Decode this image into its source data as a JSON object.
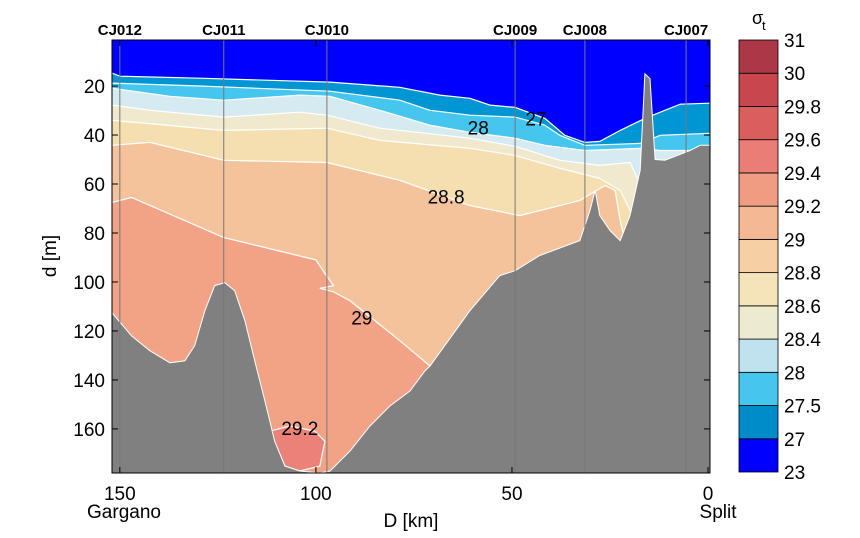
{
  "chart_data": {
    "type": "heatmap",
    "subtype": "filled-contour-section",
    "xlabel": "D [km]",
    "ylabel": "d [m]",
    "xlim": [
      152,
      -0.5
    ],
    "ylim": [
      1.2,
      178
    ],
    "xticks": [
      150,
      100,
      50,
      0
    ],
    "yticks": [
      20,
      40,
      60,
      80,
      100,
      120,
      140,
      160
    ],
    "x_end_labels": {
      "left": "Gargano",
      "right": "Split"
    },
    "stations": [
      {
        "name": "CJ012",
        "km": 150
      },
      {
        "name": "CJ011",
        "km": 123.5
      },
      {
        "name": "CJ010",
        "km": 97.2
      },
      {
        "name": "CJ009",
        "km": 49.2
      },
      {
        "name": "CJ008",
        "km": 31.4
      },
      {
        "name": "CJ007",
        "km": 5.6
      }
    ],
    "colorbar": {
      "title": "σ",
      "title_sub": "t",
      "levels": [
        "23",
        "27",
        "27.5",
        "28",
        "28.4",
        "28.6",
        "28.8",
        "29",
        "29.2",
        "29.4",
        "29.6",
        "29.8",
        "30",
        "31"
      ],
      "colors": [
        "#0000ff",
        "#008cc8",
        "#44c6ee",
        "#bfe2ee",
        "#ecebd0",
        "#f5e3b9",
        "#f6d0a4",
        "#f4b894",
        "#f09c82",
        "#ea7d75",
        "#da5e5e",
        "#c8474f",
        "#ac3747"
      ]
    },
    "background_color": "#0000ff",
    "layers": [
      {
        "level": "27",
        "color": "#0096d4",
        "boundary": [
          [
            152,
            14.7
          ],
          [
            150,
            16
          ],
          [
            129.6,
            16.8
          ],
          [
            96.4,
            18.4
          ],
          [
            78.6,
            20.5
          ],
          [
            68.4,
            23.7
          ],
          [
            60.7,
            25
          ],
          [
            55.6,
            27.8
          ],
          [
            49.2,
            28.7
          ],
          [
            41.6,
            33.2
          ],
          [
            36.5,
            40.1
          ],
          [
            31.4,
            43
          ],
          [
            27.6,
            42.6
          ],
          [
            22.4,
            38.1
          ],
          [
            16.1,
            33.2
          ],
          [
            12.2,
            30.7
          ],
          [
            7.1,
            27.4
          ],
          [
            -0.5,
            27
          ]
        ]
      },
      {
        "level": "27.5",
        "color": "#44c6ee",
        "boundary": [
          [
            152,
            18.8
          ],
          [
            129.6,
            20
          ],
          [
            96.4,
            22.1
          ],
          [
            78.6,
            25.8
          ],
          [
            70.9,
            29.9
          ],
          [
            60.7,
            31.9
          ],
          [
            49.2,
            32.7
          ],
          [
            41.6,
            36
          ],
          [
            37.8,
            40.1
          ],
          [
            31.4,
            44.2
          ],
          [
            17.3,
            43.4
          ],
          [
            12.2,
            40.1
          ],
          [
            -0.5,
            39.3
          ]
        ]
      },
      {
        "level": "28",
        "color": "#d6ebf1",
        "boundary": [
          [
            152,
            20.9
          ],
          [
            137.2,
            24.2
          ],
          [
            123.5,
            25.8
          ],
          [
            104.1,
            23.7
          ],
          [
            96.4,
            24.2
          ],
          [
            83.7,
            29.9
          ],
          [
            70.9,
            36
          ],
          [
            60.7,
            38.9
          ],
          [
            49.2,
            41.3
          ],
          [
            41.6,
            44.2
          ],
          [
            31.4,
            46.3
          ],
          [
            17.3,
            45.4
          ],
          [
            12.2,
            46.3
          ],
          [
            -0.5,
            46.3
          ]
        ]
      },
      {
        "level": "28.4",
        "color": "#f1e9cd",
        "boundary": [
          [
            152,
            27.8
          ],
          [
            142.3,
            29.9
          ],
          [
            123.5,
            32.7
          ],
          [
            104.1,
            30.7
          ],
          [
            97.2,
            31.9
          ],
          [
            83.7,
            37.2
          ],
          [
            60.7,
            41.3
          ],
          [
            49.2,
            44.6
          ],
          [
            37.8,
            50.3
          ],
          [
            27.6,
            52.4
          ],
          [
            19.9,
            51.2
          ],
          [
            17.3,
            60
          ],
          [
            -0.5,
            60
          ]
        ]
      },
      {
        "level": "28.6",
        "color": "#f5dfb0",
        "boundary": [
          [
            152,
            34
          ],
          [
            123.5,
            38.1
          ],
          [
            97.2,
            37.2
          ],
          [
            83.7,
            42.2
          ],
          [
            60.7,
            45.4
          ],
          [
            49.2,
            48.3
          ],
          [
            37.8,
            53.6
          ],
          [
            27.6,
            57.7
          ],
          [
            22.4,
            62.6
          ],
          [
            19.9,
            70.8
          ],
          [
            18.6,
            79
          ],
          [
            17.3,
            80
          ]
        ]
      },
      {
        "level": "28.8",
        "color": "#f5c39b",
        "boundary": [
          [
            152,
            44.2
          ],
          [
            142.3,
            43
          ],
          [
            123.5,
            50.3
          ],
          [
            97.2,
            51.2
          ],
          [
            78.6,
            58.5
          ],
          [
            60.7,
            68.8
          ],
          [
            48,
            72.9
          ],
          [
            32.7,
            66.7
          ],
          [
            26.3,
            60.6
          ],
          [
            23.7,
            62.6
          ],
          [
            22.4,
            74.9
          ],
          [
            21,
            85
          ]
        ]
      },
      {
        "level": "29",
        "color": "#f2a385",
        "boundary": [
          [
            152,
            67.5
          ],
          [
            147,
            65.5
          ],
          [
            123.5,
            81.9
          ],
          [
            100,
            91
          ],
          [
            97.5,
            97
          ],
          [
            95.5,
            101.5
          ],
          [
            99,
            102.6
          ],
          [
            95.5,
            104
          ],
          [
            91.3,
            107.7
          ],
          [
            78.6,
            124
          ],
          [
            70.9,
            134.3
          ],
          [
            60,
            150
          ],
          [
            55,
            178
          ]
        ]
      }
    ],
    "lens": {
      "level": "29.2",
      "color": "#ec8277",
      "polygon": [
        [
          111.7,
          160.9
        ],
        [
          106.6,
          158.8
        ],
        [
          100.3,
          160.9
        ],
        [
          97.7,
          165
        ],
        [
          99,
          175.2
        ],
        [
          104.1,
          177.2
        ],
        [
          107.9,
          175.2
        ]
      ]
    },
    "bathymetry": {
      "color": "#808080",
      "profile": [
        [
          152,
          112.6
        ],
        [
          147,
          122
        ],
        [
          142.3,
          128.1
        ],
        [
          137.2,
          133
        ],
        [
          133.4,
          132.2
        ],
        [
          130.9,
          126
        ],
        [
          128.3,
          111.7
        ],
        [
          125.8,
          101.5
        ],
        [
          123.2,
          100.3
        ],
        [
          120.7,
          103.6
        ],
        [
          118.1,
          115.8
        ],
        [
          115.6,
          132.2
        ],
        [
          113,
          148.6
        ],
        [
          110.5,
          165
        ],
        [
          107.9,
          175.2
        ],
        [
          104.1,
          177.2
        ],
        [
          99,
          178
        ],
        [
          96.4,
          177.2
        ],
        [
          91.3,
          169
        ],
        [
          86.2,
          158.8
        ],
        [
          81.1,
          150.6
        ],
        [
          76,
          144.5
        ],
        [
          72.2,
          136.3
        ],
        [
          70.9,
          134.3
        ],
        [
          60.7,
          111.7
        ],
        [
          53.1,
          97.4
        ],
        [
          49.2,
          95.4
        ],
        [
          42.9,
          89.2
        ],
        [
          32.7,
          83.1
        ],
        [
          30.1,
          70.8
        ],
        [
          28.8,
          62.6
        ],
        [
          27.6,
          72.9
        ],
        [
          25,
          79
        ],
        [
          22.4,
          83.1
        ],
        [
          19.9,
          72.9
        ],
        [
          17.3,
          54.4
        ],
        [
          16.1,
          15
        ],
        [
          14.8,
          17
        ],
        [
          13.5,
          50
        ],
        [
          11,
          50.3
        ],
        [
          4.6,
          46.3
        ],
        [
          2,
          44.2
        ],
        [
          -0.5,
          44.2
        ]
      ]
    },
    "contour_labels": [
      {
        "text": "28",
        "km": 58.6,
        "m": 37
      },
      {
        "text": "27",
        "km": 43.9,
        "m": 33.2
      },
      {
        "text": "28.8",
        "km": 66.8,
        "m": 65
      },
      {
        "text": "29",
        "km": 88.3,
        "m": 114.6
      },
      {
        "text": "29.2",
        "km": 104.1,
        "m": 159.6
      }
    ]
  }
}
